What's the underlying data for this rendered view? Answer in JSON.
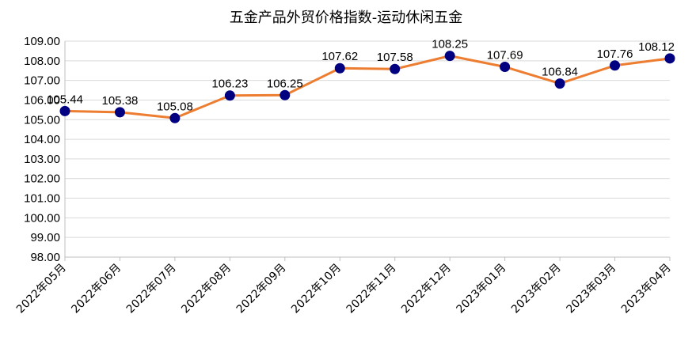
{
  "chart_data": {
    "type": "line",
    "title": "五金产品外贸价格指数-运动休闲五金",
    "categories": [
      "2022年05月",
      "2022年06月",
      "2022年07月",
      "2022年08月",
      "2022年09月",
      "2022年10月",
      "2022年11月",
      "2022年12月",
      "2023年01月",
      "2023年02月",
      "2023年03月",
      "2023年04月"
    ],
    "series": [
      {
        "values": [
          105.44,
          105.38,
          105.08,
          106.23,
          106.25,
          107.62,
          107.58,
          108.25,
          107.69,
          106.84,
          107.76,
          108.12
        ]
      }
    ],
    "data_labels": [
      "105.44",
      "105.38",
      "105.08",
      "106.23",
      "106.25",
      "107.62",
      "107.58",
      "108.25",
      "107.69",
      "106.84",
      "107.76",
      "108.12"
    ],
    "y_ticks": [
      "98.00",
      "99.00",
      "100.00",
      "101.00",
      "102.00",
      "103.00",
      "104.00",
      "105.00",
      "106.00",
      "107.00",
      "108.00",
      "109.00"
    ],
    "ylim": [
      98,
      109
    ],
    "grid": true,
    "legend": "none",
    "colors": {
      "line": "#ed7d31",
      "marker": "#000080",
      "grid": "#d9d9d9"
    }
  }
}
